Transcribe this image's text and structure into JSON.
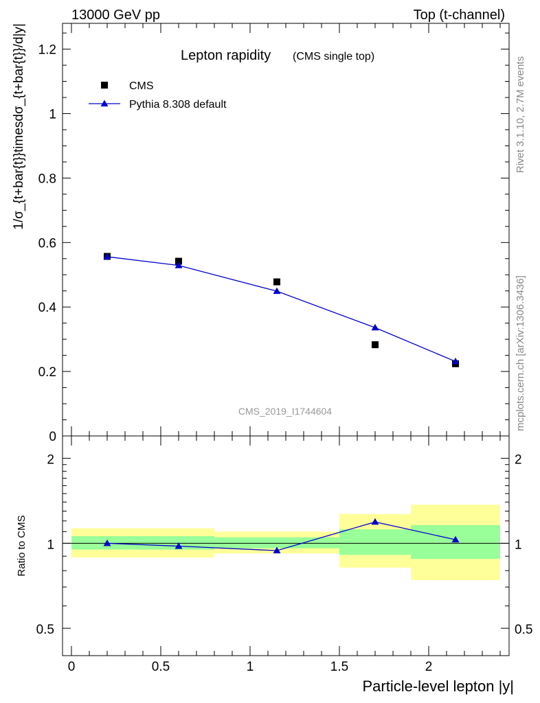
{
  "header": {
    "left": "13000 GeV pp",
    "right": "Top (t-channel)"
  },
  "side_text": {
    "rivet": "Rivet 3.1.10,  2.7M events",
    "mcplots": "mcplots.cern.ch [arXiv:1306.3436]"
  },
  "chart_data": [
    {
      "type": "scatter",
      "title": "Lepton rapidity",
      "subtitle": "(CMS single top)",
      "ylabel": "1/σ_{t+bar{t}}timesdσ_{t+bar{t}}/d|y|",
      "xlabel": "",
      "xlim": [
        -0.05,
        2.45
      ],
      "ylim": [
        0,
        1.28
      ],
      "yticks": [
        0,
        0.2,
        0.4,
        0.6,
        0.8,
        1,
        1.2
      ],
      "ytick_labels": [
        "0",
        "0.2",
        "0.4",
        "0.6",
        "0.8",
        "1",
        "1.2"
      ],
      "legend_position": "top-left",
      "watermark": "CMS_2019_I1744604",
      "series": [
        {
          "name": "CMS",
          "kind": "markers",
          "marker": "square",
          "color": "#000000",
          "x": [
            0.2,
            0.6,
            1.15,
            1.7,
            2.15
          ],
          "y": [
            0.557,
            0.542,
            0.478,
            0.283,
            0.224
          ]
        },
        {
          "name": "Pythia 8.308 default",
          "kind": "line",
          "marker": "triangle",
          "color": "#0000cc",
          "x": [
            0.2,
            0.6,
            1.15,
            1.7,
            2.15
          ],
          "y": [
            0.556,
            0.529,
            0.449,
            0.336,
            0.231
          ]
        }
      ]
    },
    {
      "type": "line",
      "ylabel": "Ratio to CMS",
      "xlabel": "Particle-level lepton |y|",
      "xlim": [
        -0.05,
        2.45
      ],
      "ylim": [
        0.4,
        2.4
      ],
      "ylog": true,
      "yticks": [
        0.5,
        1,
        2
      ],
      "ytick_labels": [
        "0.5",
        "1",
        "2"
      ],
      "xticks": [
        0,
        0.5,
        1,
        1.5,
        2
      ],
      "xtick_labels": [
        "0",
        "0.5",
        "1",
        "1.5",
        "2"
      ],
      "reference_line": 1,
      "bands": [
        {
          "x0": 0.0,
          "x1": 0.4,
          "inner": [
            0.95,
            1.06
          ],
          "outer": [
            0.89,
            1.13
          ]
        },
        {
          "x0": 0.4,
          "x1": 0.8,
          "inner": [
            0.95,
            1.06
          ],
          "outer": [
            0.89,
            1.13
          ]
        },
        {
          "x0": 0.8,
          "x1": 1.5,
          "inner": [
            0.96,
            1.05
          ],
          "outer": [
            0.92,
            1.1
          ]
        },
        {
          "x0": 1.5,
          "x1": 1.9,
          "inner": [
            0.91,
            1.12
          ],
          "outer": [
            0.82,
            1.27
          ]
        },
        {
          "x0": 1.9,
          "x1": 2.4,
          "inner": [
            0.88,
            1.16
          ],
          "outer": [
            0.74,
            1.37
          ]
        }
      ],
      "series": [
        {
          "name": "Pythia 8.308 default",
          "color": "#0000cc",
          "marker": "triangle",
          "x": [
            0.2,
            0.6,
            1.15,
            1.7,
            2.15
          ],
          "y": [
            1.0,
            0.977,
            0.942,
            1.19,
            1.03
          ]
        }
      ]
    }
  ]
}
